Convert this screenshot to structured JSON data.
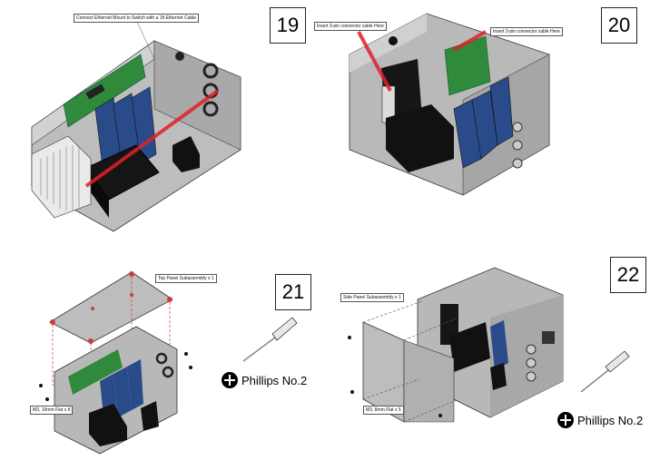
{
  "steps": {
    "s19": "19",
    "s20": "20",
    "s21": "21",
    "s22": "22"
  },
  "callouts": {
    "ethernet": "Connect Ethernet Mount to Switch with a 1ft Ethernet Cable",
    "connector_left": "Insert 3-pin connector cable Here",
    "connector_right": "Insert 3-pin connector cable Here",
    "top_panel": "Top Panel Subassembly x 1",
    "screws_top": "M3, 10mm Flat x 8",
    "side_panel": "Side Panel Subassembly x 1",
    "screws_side": "M3, 8mm Flat x 5"
  },
  "tools": {
    "phillips_21": "Phillips No.2",
    "phillips_22": "Phillips No.2"
  },
  "icons": {
    "screwdriver": "screwdriver-icon",
    "phillips": "phillips-head-icon"
  },
  "colors": {
    "chassis": "#b8b8b8",
    "board": "#2f8a3b",
    "module": "#2a4b8a",
    "highlight": "#e0202a",
    "pad": "#d23a3a"
  }
}
